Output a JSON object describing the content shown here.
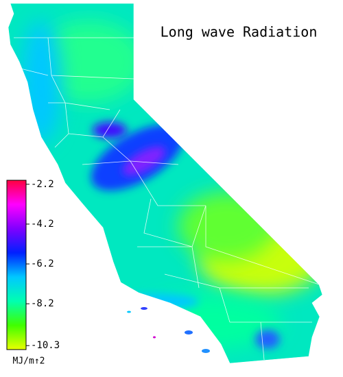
{
  "map": {
    "title": "Long wave Radiation",
    "colorbar": {
      "clim": [
        -10.5,
        -2.0
      ],
      "ticks": [
        -2.2,
        -4.2,
        -6.2,
        -8.2,
        -10.3
      ],
      "colormap": [
        "#e8ff00",
        "#40ff00",
        "#00ffb0",
        "#00c8ff",
        "#0020ff",
        "#8000ff",
        "#ff00ff",
        "#ff0040"
      ],
      "unit": "MJ/m↑2"
    }
  }
}
